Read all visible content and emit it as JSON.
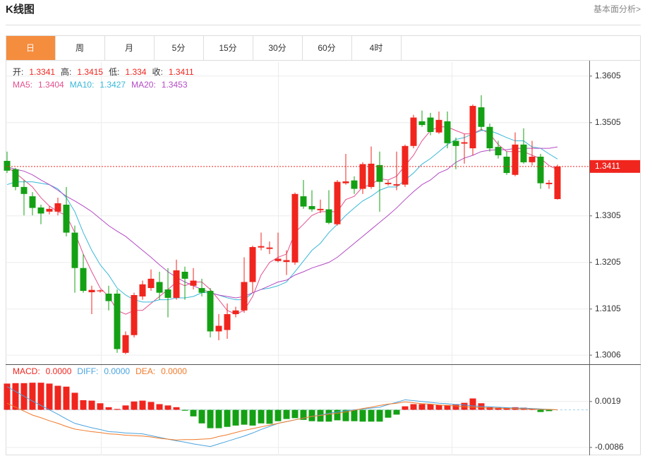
{
  "header": {
    "title": "K线图",
    "link": "基本面分析>"
  },
  "tabs": {
    "items": [
      "日",
      "周",
      "月",
      "5分",
      "15分",
      "30分",
      "60分",
      "4时"
    ],
    "active": 0
  },
  "chart_data": [
    {
      "type": "candlestick",
      "ohlc_labels": [
        "开:",
        "高:",
        "低:",
        "收:"
      ],
      "up_color": "#f0251e",
      "down_color": "#14a014",
      "open": [
        1.3423,
        1.3405,
        1.3367,
        1.3347,
        1.3323,
        1.3314,
        1.3314,
        1.3329,
        1.3269,
        1.3193,
        1.3141,
        1.3143,
        1.3138,
        1.3138,
        1.3011,
        1.3049,
        1.3132,
        1.315,
        1.3163,
        1.3147,
        1.3129,
        1.3185,
        1.3155,
        1.315,
        1.3144,
        1.3057,
        1.306,
        1.3094,
        1.3102,
        1.3163,
        1.3237,
        1.3234,
        1.3208,
        1.3206,
        1.3205,
        1.3347,
        1.3326,
        1.3317,
        1.3319,
        1.3287,
        1.3375,
        1.3381,
        1.3363,
        1.3367,
        1.3414,
        1.3373,
        1.337,
        1.3372,
        1.3455,
        1.3508,
        1.3516,
        1.3484,
        1.3508,
        1.3466,
        1.346,
        1.345,
        1.3538,
        1.3496,
        1.3453,
        1.3432,
        1.3393,
        1.3458,
        1.342,
        1.3432,
        1.3373,
        1.3341
      ],
      "high": [
        1.3443,
        1.3408,
        1.3382,
        1.3356,
        1.3329,
        1.3326,
        1.3344,
        1.3367,
        1.3284,
        1.3223,
        1.3155,
        1.3147,
        1.3155,
        1.3147,
        1.3057,
        1.314,
        1.3166,
        1.319,
        1.3185,
        1.3193,
        1.3211,
        1.3196,
        1.3193,
        1.317,
        1.315,
        1.3094,
        1.3117,
        1.311,
        1.3216,
        1.3241,
        1.3269,
        1.325,
        1.3269,
        1.3231,
        1.3355,
        1.3382,
        1.336,
        1.334,
        1.336,
        1.3382,
        1.3438,
        1.339,
        1.342,
        1.3454,
        1.3443,
        1.3381,
        1.3443,
        1.3458,
        1.3522,
        1.3531,
        1.3526,
        1.3529,
        1.3529,
        1.3473,
        1.3481,
        1.3544,
        1.3564,
        1.3503,
        1.3466,
        1.3443,
        1.3484,
        1.3493,
        1.3466,
        1.3438,
        1.3382,
        1.3415
      ],
      "low": [
        1.3397,
        1.336,
        1.3306,
        1.3306,
        1.3287,
        1.3308,
        1.3306,
        1.3261,
        1.314,
        1.314,
        1.3094,
        1.314,
        1.3102,
        1.3011,
        1.3008,
        1.3044,
        1.3125,
        1.3144,
        1.3125,
        1.3087,
        1.3125,
        1.3125,
        1.3147,
        1.3132,
        1.3044,
        1.3038,
        1.3041,
        1.3087,
        1.3097,
        1.314,
        1.3231,
        1.3223,
        1.3205,
        1.3178,
        1.32,
        1.332,
        1.3314,
        1.3311,
        1.3287,
        1.3284,
        1.3372,
        1.3352,
        1.3352,
        1.3363,
        1.3314,
        1.337,
        1.336,
        1.3367,
        1.345,
        1.3496,
        1.3478,
        1.3481,
        1.345,
        1.3405,
        1.3417,
        1.3435,
        1.3488,
        1.3443,
        1.3428,
        1.3393,
        1.339,
        1.3417,
        1.3413,
        1.3363,
        1.3363,
        1.334
      ],
      "close": [
        1.3402,
        1.3367,
        1.3352,
        1.3322,
        1.331,
        1.332,
        1.3332,
        1.3269,
        1.3193,
        1.3144,
        1.3146,
        1.3145,
        1.3122,
        1.3019,
        1.3049,
        1.3135,
        1.3158,
        1.317,
        1.314,
        1.3129,
        1.3188,
        1.317,
        1.3166,
        1.314,
        1.3057,
        1.3069,
        1.3094,
        1.3102,
        1.3163,
        1.3238,
        1.324,
        1.3237,
        1.3213,
        1.321,
        1.3352,
        1.3325,
        1.3319,
        1.332,
        1.329,
        1.3378,
        1.3379,
        1.3363,
        1.3416,
        1.3417,
        1.3378,
        1.3376,
        1.3373,
        1.3455,
        1.3516,
        1.35,
        1.3485,
        1.3511,
        1.3461,
        1.3455,
        1.3463,
        1.3541,
        1.3496,
        1.345,
        1.3435,
        1.3397,
        1.3458,
        1.342,
        1.3432,
        1.3375,
        1.3376,
        1.3411
      ],
      "series": [
        {
          "name": "MA5:",
          "color": "#e2508f",
          "values": [
            1.341,
            1.3397,
            1.3382,
            1.3367,
            1.3344,
            1.3326,
            1.3314,
            1.3306,
            1.3269,
            1.3223,
            1.3185,
            1.315,
            1.3132,
            1.3102,
            1.3094,
            1.3102,
            1.3102,
            1.3117,
            1.3132,
            1.3147,
            1.3163,
            1.3155,
            1.3163,
            1.3163,
            1.3147,
            1.3125,
            1.3102,
            1.3094,
            1.3102,
            1.3132,
            1.3178,
            1.3205,
            1.3216,
            1.3223,
            1.3269,
            1.3287,
            1.3306,
            1.3314,
            1.3314,
            1.3314,
            1.334,
            1.3347,
            1.3367,
            1.3372,
            1.3385,
            1.3382,
            1.339,
            1.3413,
            1.3435,
            1.3466,
            1.3488,
            1.3496,
            1.3496,
            1.3488,
            1.3481,
            1.3481,
            1.3491,
            1.3481,
            1.3458,
            1.3443,
            1.3443,
            1.3443,
            1.3435,
            1.3428,
            1.3413,
            1.3404
          ]
        },
        {
          "name": "MA10:",
          "color": "#3ab8d8",
          "values": [
            1.3372,
            1.3378,
            1.3378,
            1.3378,
            1.3375,
            1.3372,
            1.3363,
            1.3344,
            1.3314,
            1.3269,
            1.3231,
            1.32,
            1.3178,
            1.315,
            1.3135,
            1.3125,
            1.312,
            1.312,
            1.3125,
            1.3125,
            1.3129,
            1.3129,
            1.3132,
            1.314,
            1.314,
            1.3135,
            1.3129,
            1.3125,
            1.3125,
            1.314,
            1.3147,
            1.315,
            1.3155,
            1.3163,
            1.3185,
            1.3208,
            1.3231,
            1.3246,
            1.3269,
            1.3287,
            1.3306,
            1.3322,
            1.3337,
            1.3347,
            1.336,
            1.3367,
            1.3367,
            1.3382,
            1.3397,
            1.3416,
            1.3428,
            1.3443,
            1.3458,
            1.3469,
            1.3473,
            1.3481,
            1.3488,
            1.3488,
            1.3481,
            1.3473,
            1.3466,
            1.3466,
            1.3453,
            1.345,
            1.3438,
            1.3427
          ]
        },
        {
          "name": "MA20:",
          "color": "#b34bc4",
          "values": [
            1.341,
            1.3405,
            1.3401,
            1.3393,
            1.3382,
            1.3372,
            1.336,
            1.3347,
            1.3337,
            1.3326,
            1.3314,
            1.3299,
            1.3284,
            1.3272,
            1.3261,
            1.3246,
            1.3231,
            1.3216,
            1.32,
            1.3185,
            1.3173,
            1.3163,
            1.3155,
            1.3147,
            1.314,
            1.3135,
            1.3132,
            1.3129,
            1.3132,
            1.314,
            1.3147,
            1.3155,
            1.3163,
            1.3167,
            1.3178,
            1.3185,
            1.3193,
            1.3199,
            1.3205,
            1.3216,
            1.3231,
            1.3246,
            1.3261,
            1.3276,
            1.3291,
            1.3306,
            1.3322,
            1.334,
            1.3357,
            1.3372,
            1.3382,
            1.3397,
            1.3405,
            1.342,
            1.3429,
            1.3435,
            1.3443,
            1.3446,
            1.3447,
            1.3447,
            1.345,
            1.345,
            1.345,
            1.345,
            1.345,
            1.3453
          ]
        }
      ],
      "ylim": [
        1.2988,
        1.3635
      ],
      "yticks": [
        1.3605,
        1.3505,
        1.3305,
        1.3205,
        1.3105,
        1.3006
      ],
      "grid": true
    },
    {
      "type": "macd",
      "up_color": "#f0251e",
      "down_color": "#14a014",
      "series": [
        {
          "name": "MACD:",
          "kind": "bar",
          "color": "#f0251e",
          "last_label": "0.0000",
          "values": [
            0.006,
            0.0061,
            0.0061,
            0.0062,
            0.0062,
            0.006,
            0.0055,
            0.0053,
            0.0039,
            0.0022,
            0.0021,
            0.0015,
            0.0006,
            0.0002,
            0.001,
            0.0019,
            0.0021,
            0.0018,
            0.0013,
            0.001,
            0.0006,
            -0.0002,
            -0.0015,
            -0.0031,
            -0.0042,
            -0.0042,
            -0.0039,
            -0.0036,
            -0.0034,
            -0.0036,
            -0.0031,
            -0.0032,
            -0.0026,
            -0.0021,
            -0.0019,
            -0.0023,
            -0.0026,
            -0.0027,
            -0.0027,
            -0.0024,
            -0.0026,
            -0.0026,
            -0.0027,
            -0.0027,
            -0.0027,
            -0.0018,
            -0.0011,
            0.0008,
            0.0013,
            0.0013,
            0.0013,
            0.0011,
            0.0011,
            0.0013,
            0.0016,
            0.0026,
            0.0015,
            0.0006,
            0.0005,
            0.0005,
            0.0006,
            0.0005,
            0.0002,
            -0.0005,
            -0.0003,
            0
          ]
        },
        {
          "name": "DIFF:",
          "kind": "line",
          "color": "#4aa3df",
          "last_label": "0.0000",
          "values": [
            0.0053,
            0.0042,
            0.0031,
            0.002,
            0.001,
            0,
            -0.001,
            -0.0021,
            -0.0031,
            -0.0036,
            -0.0041,
            -0.0045,
            -0.005,
            -0.0051,
            -0.0053,
            -0.0054,
            -0.0055,
            -0.0059,
            -0.0063,
            -0.0067,
            -0.0071,
            -0.0074,
            -0.0078,
            -0.0081,
            -0.0084,
            -0.0078,
            -0.0072,
            -0.0066,
            -0.006,
            -0.0053,
            -0.0045,
            -0.0038,
            -0.0031,
            -0.0027,
            -0.0023,
            -0.0019,
            -0.0015,
            -0.0012,
            -0.0008,
            -0.0005,
            -0.0002,
            0,
            0.0002,
            0.0004,
            0.0006,
            0.0012,
            0.0017,
            0.0023,
            0.0021,
            0.0019,
            0.0017,
            0.0015,
            0.0014,
            0.0012,
            0.0011,
            0.0009,
            0.0008,
            0.0007,
            0.0006,
            0.0005,
            0.0004,
            0.0004,
            0.0003,
            0.0002,
            0.0001,
            0
          ]
        },
        {
          "name": "DEA:",
          "kind": "line",
          "color": "#f07a2a",
          "last_label": "0.0000",
          "values": [
            0.0015,
            0.0006,
            -0.0003,
            -0.0012,
            -0.0018,
            -0.0025,
            -0.0031,
            -0.0038,
            -0.0044,
            -0.0047,
            -0.005,
            -0.0052,
            -0.0055,
            -0.0056,
            -0.0058,
            -0.0059,
            -0.006,
            -0.0062,
            -0.0065,
            -0.0067,
            -0.0069,
            -0.0068,
            -0.0068,
            -0.0067,
            -0.0066,
            -0.0061,
            -0.0057,
            -0.0052,
            -0.0047,
            -0.0043,
            -0.0039,
            -0.0035,
            -0.0031,
            -0.0027,
            -0.0023,
            -0.0019,
            -0.0015,
            -0.0013,
            -0.001,
            -0.0008,
            -0.0005,
            -0.0001,
            0.0003,
            0.0006,
            0.001,
            0.0013,
            0.0015,
            0.0018,
            0.0016,
            0.0014,
            0.0013,
            0.0011,
            0.001,
            0.0009,
            0.0007,
            0.0006,
            0.0005,
            0.0004,
            0.0004,
            0.0003,
            0.0003,
            0.0002,
            0.0002,
            0.0001,
            0.0001,
            0
          ]
        }
      ],
      "ylim": [
        -0.0104,
        0.0101
      ],
      "yticks": [
        0.0019,
        -0.0086
      ],
      "grid": true
    }
  ]
}
